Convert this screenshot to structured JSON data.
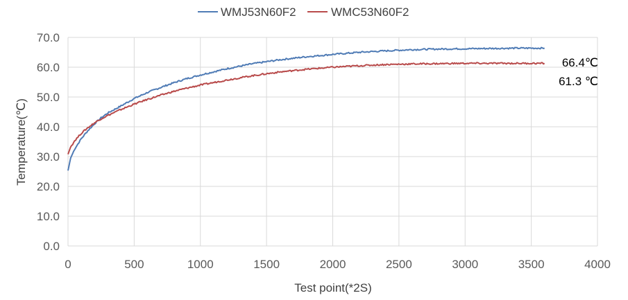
{
  "chart_data": {
    "type": "line",
    "title": "",
    "xlabel": "Test point(*2S)",
    "ylabel": "Temperature(℃)",
    "xlim": [
      0,
      4000
    ],
    "ylim": [
      0,
      70
    ],
    "x_ticks": [
      0,
      500,
      1000,
      1500,
      2000,
      2500,
      3000,
      3500,
      4000
    ],
    "x_tick_labels": [
      "0",
      "500",
      "1000",
      "1500",
      "2000",
      "2500",
      "3000",
      "3500",
      "4000"
    ],
    "y_ticks": [
      0,
      10,
      20,
      30,
      40,
      50,
      60,
      70
    ],
    "y_tick_labels": [
      "0.0",
      "10.0",
      "20.0",
      "30.0",
      "40.0",
      "50.0",
      "60.0",
      "70.0"
    ],
    "grid": true,
    "legend_position": "top-center",
    "series": [
      {
        "name": "WMJ53N60F2",
        "color": "#4f7bb5",
        "x": [
          0,
          20,
          50,
          100,
          150,
          200,
          250,
          300,
          400,
          500,
          600,
          700,
          800,
          900,
          1000,
          1200,
          1400,
          1600,
          1800,
          2000,
          2200,
          2400,
          2600,
          2800,
          3000,
          3200,
          3400,
          3600
        ],
        "y": [
          25.3,
          29.5,
          32.5,
          36.0,
          38.7,
          41.0,
          43.0,
          44.6,
          47.0,
          49.5,
          51.5,
          53.2,
          54.8,
          56.2,
          57.4,
          59.5,
          61.2,
          62.5,
          63.5,
          64.3,
          65.0,
          65.5,
          65.9,
          66.1,
          66.2,
          66.3,
          66.4,
          66.4
        ]
      },
      {
        "name": "WMC53N60F2",
        "color": "#b84a4a",
        "x": [
          0,
          20,
          50,
          100,
          150,
          200,
          250,
          300,
          400,
          500,
          600,
          700,
          800,
          900,
          1000,
          1200,
          1400,
          1600,
          1800,
          2000,
          2200,
          2400,
          2600,
          2800,
          3000,
          3200,
          3400,
          3600
        ],
        "y": [
          30.8,
          33.2,
          35.3,
          37.8,
          39.7,
          41.3,
          42.7,
          43.8,
          45.8,
          47.6,
          49.2,
          50.6,
          51.9,
          53.0,
          54.0,
          55.7,
          57.2,
          58.4,
          59.3,
          60.0,
          60.5,
          60.9,
          61.1,
          61.2,
          61.3,
          61.3,
          61.3,
          61.3
        ]
      }
    ],
    "annotations": [
      {
        "text": "66.4℃"
      },
      {
        "text": "61.3 ℃"
      }
    ]
  }
}
